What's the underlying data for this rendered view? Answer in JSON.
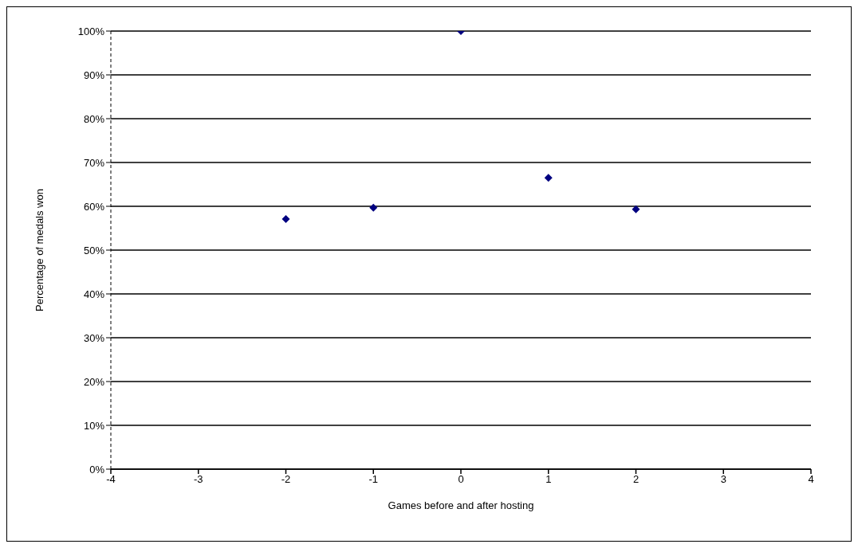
{
  "chart_data": {
    "type": "scatter",
    "xlabel": "Games before and after hosting",
    "ylabel": "Percentage of medals won",
    "x": [
      -2,
      -1,
      0,
      1,
      2
    ],
    "values": [
      57.1,
      59.7,
      100,
      66.5,
      59.3
    ],
    "color": "#000080",
    "marker": "diamond",
    "grid": "y",
    "legend": false,
    "xlim": [
      -4,
      4
    ],
    "xticks": [
      -4,
      -3,
      -2,
      -1,
      0,
      1,
      2,
      3,
      4
    ],
    "ylim": [
      0,
      100
    ],
    "yticks": [
      {
        "value": 0,
        "label": "0%"
      },
      {
        "value": 10,
        "label": "10%"
      },
      {
        "value": 20,
        "label": "20%"
      },
      {
        "value": 30,
        "label": "30%"
      },
      {
        "value": 40,
        "label": "40%"
      },
      {
        "value": 50,
        "label": "50%"
      },
      {
        "value": 60,
        "label": "60%"
      },
      {
        "value": 70,
        "label": "70%"
      },
      {
        "value": 80,
        "label": "80%"
      },
      {
        "value": 90,
        "label": "90%"
      },
      {
        "value": 100,
        "label": "100%"
      }
    ]
  }
}
